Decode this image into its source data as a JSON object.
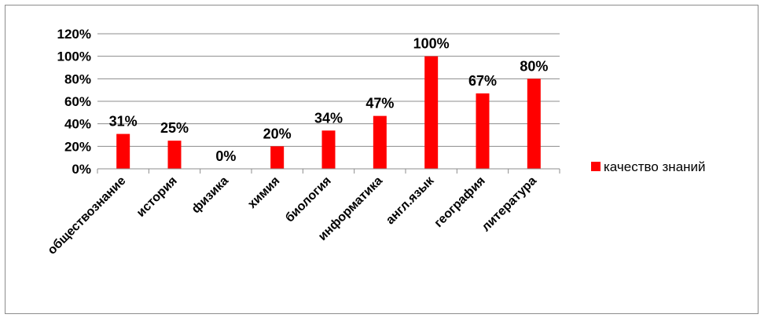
{
  "chart_data": {
    "type": "bar",
    "categories": [
      "обществознание",
      "история",
      "физика",
      "химия",
      "биология",
      "информатика",
      "англ.язык",
      "география",
      "литература"
    ],
    "series": [
      {
        "name": "качество знаний",
        "values": [
          31,
          25,
          0,
          20,
          34,
          47,
          100,
          67,
          80
        ],
        "color": "#ff0000"
      }
    ],
    "data_labels": [
      "31%",
      "25%",
      "0%",
      "20%",
      "34%",
      "47%",
      "100%",
      "67%",
      "80%"
    ],
    "y_ticks": [
      "0%",
      "20%",
      "40%",
      "60%",
      "80%",
      "100%",
      "120%"
    ],
    "ylim": [
      0,
      120
    ],
    "grid": true,
    "legend_position": "right",
    "title": "",
    "xlabel": "",
    "ylabel": ""
  }
}
